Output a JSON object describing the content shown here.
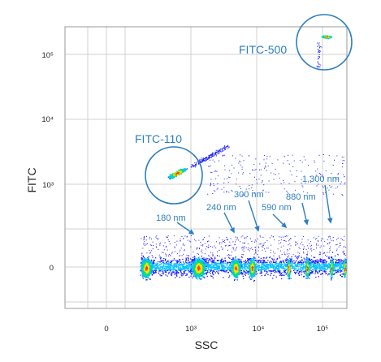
{
  "chart_data": {
    "type": "scatter",
    "xlabel": "SSC",
    "ylabel": "FITC",
    "x_ticks": [
      "0",
      "10³",
      "10⁴",
      "10⁵"
    ],
    "y_ticks": [
      "0",
      "10³",
      "10⁴",
      "10⁵"
    ],
    "x_tick_values": [
      0,
      1000,
      10000,
      100000
    ],
    "y_tick_values": [
      0,
      1000,
      10000,
      100000
    ],
    "scale": "biexponential",
    "grid": true,
    "colormap": [
      "#1a1aff",
      "#00c0ff",
      "#00e080",
      "#ffe000",
      "#ff4000"
    ],
    "series": [
      {
        "name": "FITC-500",
        "ssc": 130000,
        "fitc": 180000
      },
      {
        "name": "FITC-110",
        "ssc": 950,
        "fitc": 1400
      },
      {
        "name": "180 nm",
        "ssc": 1000,
        "fitc": 0
      },
      {
        "name": "240 nm",
        "ssc": 4800,
        "fitc": 0
      },
      {
        "name": "300 nm",
        "ssc": 8500,
        "fitc": 0
      },
      {
        "name": "590 nm",
        "ssc": 31000,
        "fitc": 0
      },
      {
        "name": "880 nm",
        "ssc": 65000,
        "fitc": 0
      },
      {
        "name": "1,300 nm",
        "ssc": 120000,
        "fitc": 0
      }
    ],
    "accent_color": "#2c7fbf"
  }
}
